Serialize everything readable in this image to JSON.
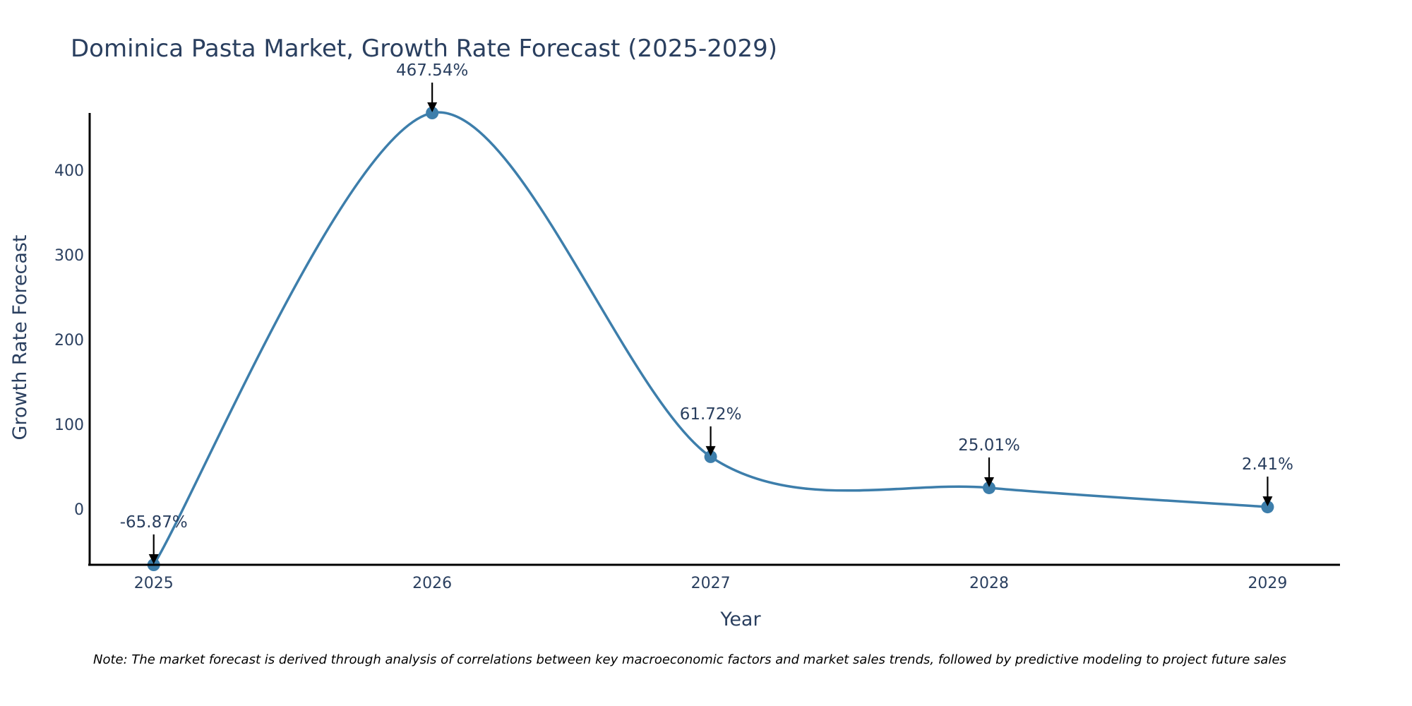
{
  "chart_data": {
    "type": "line",
    "title": "Dominica Pasta Market, Growth Rate Forecast (2025-2029)",
    "xlabel": "Year",
    "ylabel": "Growth Rate Forecast",
    "categories": [
      "2025",
      "2026",
      "2027",
      "2028",
      "2029"
    ],
    "x": [
      2025,
      2026,
      2027,
      2028,
      2029
    ],
    "values": [
      -65.87,
      467.54,
      61.72,
      25.01,
      2.41
    ],
    "labels": [
      "-65.87%",
      "467.54%",
      "61.72%",
      "25.01%",
      "2.41%"
    ],
    "y_ticks": [
      0,
      100,
      200,
      300,
      400
    ],
    "y_tick_labels": [
      "0",
      "100",
      "200",
      "300",
      "400"
    ],
    "ylim": [
      -65.87,
      467.54
    ],
    "xlim": [
      2024.77,
      2029.26
    ],
    "grid": false,
    "line_shape": "spline",
    "note": "Note: The market forecast is derived through analysis of correlations between key macroeconomic factors and market sales trends, followed by predictive modeling to project future sales",
    "colors": {
      "line": "#3d7eab",
      "marker": "#3d7eab",
      "axis": "#000000",
      "text": "#2a3f5f",
      "arrow": "#000000"
    }
  }
}
